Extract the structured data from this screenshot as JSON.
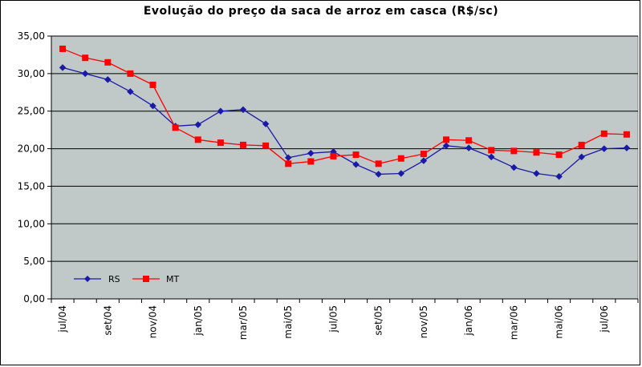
{
  "chart_data": {
    "type": "line",
    "title": "Evolução do preço da saca de arroz em casca (R$/sc)",
    "xlabel": "",
    "ylabel": "",
    "ylim": [
      0,
      35
    ],
    "yticks": [
      "0,00",
      "5,00",
      "10,00",
      "15,00",
      "20,00",
      "25,00",
      "30,00",
      "35,00"
    ],
    "x_tick_labels": [
      "jul/04",
      "set/04",
      "nov/04",
      "jan/05",
      "mar/05",
      "mai/05",
      "jul/05",
      "set/05",
      "nov/05",
      "jan/06",
      "mar/06",
      "mai/06",
      "jul/06"
    ],
    "grid": "horizontal",
    "legend_position": "bottom-left",
    "plot_background": "#c0c8c8",
    "series": [
      {
        "name": "RS",
        "color": "#1a1aa8",
        "marker": "diamond",
        "values": [
          30.8,
          30.0,
          29.2,
          27.6,
          25.7,
          23.0,
          23.2,
          25.0,
          25.2,
          23.3,
          18.8,
          19.4,
          19.6,
          17.9,
          16.6,
          16.7,
          18.4,
          20.4,
          20.1,
          18.9,
          17.5,
          16.7,
          16.3,
          18.9,
          20.0,
          20.1
        ]
      },
      {
        "name": "MT",
        "color": "#ff0000",
        "marker": "square",
        "values": [
          33.3,
          32.1,
          31.5,
          30.0,
          28.5,
          22.8,
          21.2,
          20.8,
          20.5,
          20.4,
          18.0,
          18.3,
          19.0,
          19.2,
          18.0,
          18.7,
          19.3,
          21.2,
          21.1,
          19.8,
          19.7,
          19.5,
          19.2,
          20.5,
          22.0,
          21.9
        ]
      }
    ]
  }
}
